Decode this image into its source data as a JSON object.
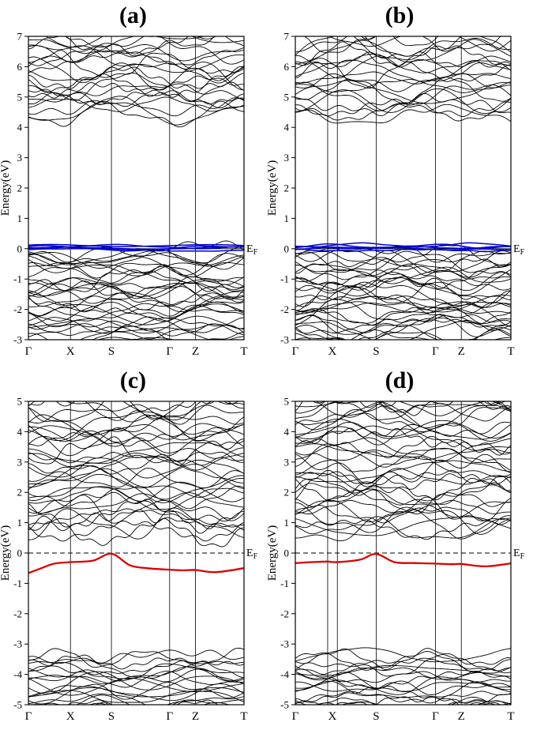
{
  "figure_name": "electronic-band-structure-figure",
  "chart_data": [
    {
      "type": "line",
      "title": "(a)",
      "ylabel": "Energy(eV)",
      "ylim": [
        -3,
        7
      ],
      "yticks": [
        -3,
        -2,
        -1,
        0,
        1,
        2,
        3,
        4,
        5,
        6,
        7
      ],
      "xticklabels": [
        "Γ",
        "X",
        "S",
        "Γ",
        "Z",
        "T"
      ],
      "xtickpos": [
        0,
        0.195,
        0.385,
        0.655,
        0.775,
        1
      ],
      "vlines": [
        0.195,
        0.385,
        0.655,
        0.775
      ],
      "fermi": {
        "energy": 0,
        "label": "E",
        "sub": "F",
        "style": "solid"
      },
      "grid": false,
      "legend": "none",
      "bands": {
        "dense_regions": [
          {
            "count": 30,
            "ymin": 4.35,
            "ymax": 8.0,
            "amp": 0.3,
            "color": "#000000",
            "seed": 11
          },
          {
            "count": 36,
            "ymin": -3.45,
            "ymax": -0.07,
            "amp": 0.26,
            "color": "#000000",
            "seed": 12
          }
        ],
        "flat_bands": {
          "count": 5,
          "ymin": -0.06,
          "ymax": 0.13,
          "amp": 0.05,
          "color": "#0000cc",
          "seed": 13
        }
      }
    },
    {
      "type": "line",
      "title": "(b)",
      "ylabel": "Energy(eV)",
      "ylim": [
        -3,
        7
      ],
      "yticks": [
        -3,
        -2,
        -1,
        0,
        1,
        2,
        3,
        4,
        5,
        6,
        7
      ],
      "xticklabels": [
        "Γ",
        "X",
        "S",
        "Γ",
        "Z",
        "T"
      ],
      "xtickpos": [
        0,
        0.172,
        0.375,
        0.65,
        0.77,
        1
      ],
      "vlines": [
        0.15,
        0.195,
        0.375,
        0.65,
        0.77
      ],
      "fermi": {
        "energy": 0,
        "label": "E",
        "sub": "F",
        "style": "solid"
      },
      "grid": false,
      "legend": "none",
      "bands": {
        "dense_regions": [
          {
            "count": 30,
            "ymin": 4.35,
            "ymax": 8.0,
            "amp": 0.3,
            "color": "#000000",
            "seed": 21
          },
          {
            "count": 36,
            "ymin": -3.45,
            "ymax": -0.07,
            "amp": 0.26,
            "color": "#000000",
            "seed": 22
          }
        ],
        "flat_bands": {
          "count": 5,
          "ymin": -0.06,
          "ymax": 0.13,
          "amp": 0.05,
          "color": "#0000cc",
          "seed": 23
        }
      }
    },
    {
      "type": "line",
      "title": "(c)",
      "ylabel": "Energy(eV)",
      "ylim": [
        -5,
        5
      ],
      "yticks": [
        -5,
        -4,
        -3,
        -2,
        -1,
        0,
        1,
        2,
        3,
        4,
        5
      ],
      "xticklabels": [
        "Γ",
        "X",
        "S",
        "Γ",
        "Z",
        "T"
      ],
      "xtickpos": [
        0,
        0.195,
        0.385,
        0.655,
        0.775,
        1
      ],
      "vlines": [
        0.195,
        0.385,
        0.655,
        0.775
      ],
      "fermi": {
        "energy": 0,
        "label": "E",
        "sub": "F",
        "style": "dashed"
      },
      "grid": false,
      "legend": "none",
      "bands": {
        "dense_regions": [
          {
            "count": 40,
            "ymin": 0.6,
            "ymax": 5.6,
            "amp": 0.32,
            "color": "#000000",
            "seed": 31
          },
          {
            "count": 22,
            "ymin": -5.5,
            "ymax": -3.35,
            "amp": 0.22,
            "color": "#000000",
            "seed": 32
          }
        ],
        "red_band": {
          "color": "#dd0000",
          "points": [
            [
              0,
              -0.66
            ],
            [
              0.06,
              -0.5
            ],
            [
              0.12,
              -0.35
            ],
            [
              0.195,
              -0.3
            ],
            [
              0.3,
              -0.25
            ],
            [
              0.385,
              -0.02
            ],
            [
              0.47,
              -0.4
            ],
            [
              0.55,
              -0.5
            ],
            [
              0.655,
              -0.55
            ],
            [
              0.72,
              -0.57
            ],
            [
              0.775,
              -0.56
            ],
            [
              0.87,
              -0.63
            ],
            [
              1,
              -0.5
            ]
          ]
        }
      }
    },
    {
      "type": "line",
      "title": "(d)",
      "ylabel": "Energy(eV)",
      "ylim": [
        -5,
        5
      ],
      "yticks": [
        -5,
        -4,
        -3,
        -2,
        -1,
        0,
        1,
        2,
        3,
        4,
        5
      ],
      "xticklabels": [
        "Γ",
        "X",
        "S",
        "Γ",
        "Z",
        "T"
      ],
      "xtickpos": [
        0,
        0.172,
        0.375,
        0.65,
        0.77,
        1
      ],
      "vlines": [
        0.15,
        0.195,
        0.375,
        0.65,
        0.77
      ],
      "fermi": {
        "energy": 0,
        "label": "E",
        "sub": "F",
        "style": "dashed"
      },
      "grid": false,
      "legend": "none",
      "bands": {
        "dense_regions": [
          {
            "count": 40,
            "ymin": 0.6,
            "ymax": 5.6,
            "amp": 0.32,
            "color": "#000000",
            "seed": 41
          },
          {
            "count": 22,
            "ymin": -5.5,
            "ymax": -3.35,
            "amp": 0.22,
            "color": "#000000",
            "seed": 42
          }
        ],
        "red_band": {
          "color": "#dd0000",
          "points": [
            [
              0,
              -0.33
            ],
            [
              0.08,
              -0.3
            ],
            [
              0.15,
              -0.28
            ],
            [
              0.195,
              -0.3
            ],
            [
              0.3,
              -0.22
            ],
            [
              0.375,
              -0.03
            ],
            [
              0.46,
              -0.3
            ],
            [
              0.55,
              -0.33
            ],
            [
              0.65,
              -0.35
            ],
            [
              0.72,
              -0.37
            ],
            [
              0.77,
              -0.36
            ],
            [
              0.88,
              -0.44
            ],
            [
              1,
              -0.34
            ]
          ]
        }
      }
    }
  ]
}
